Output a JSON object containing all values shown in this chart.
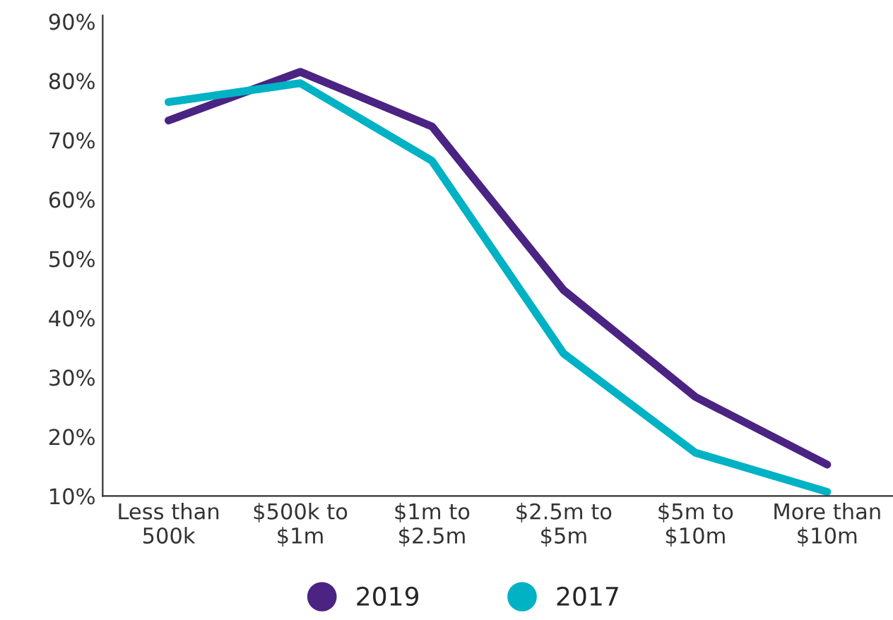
{
  "chart_data": {
    "type": "line",
    "categories": [
      "Less than\n500k",
      "$500k to\n$1m",
      "$1m to\n$2.5m",
      "$2.5m to\n$5m",
      "$5m to\n$10m",
      "More than\n$10m"
    ],
    "series": [
      {
        "name": "2019",
        "color": "#4b2383",
        "values": [
          73.3,
          81.5,
          72.3,
          44.7,
          26.7,
          15.3
        ]
      },
      {
        "name": "2017",
        "color": "#00b2c4",
        "values": [
          76.4,
          79.6,
          66.5,
          34,
          17.3,
          10.7
        ]
      }
    ],
    "ylim": [
      10,
      91
    ],
    "yticks": [
      {
        "value": 10,
        "label": "10%"
      },
      {
        "value": 20,
        "label": "20%"
      },
      {
        "value": 30,
        "label": "30%"
      },
      {
        "value": 40,
        "label": "40%"
      },
      {
        "value": 50,
        "label": "50%"
      },
      {
        "value": 60,
        "label": "60%"
      },
      {
        "value": 70,
        "label": "70%"
      },
      {
        "value": 80,
        "label": "80%"
      },
      {
        "value": 90,
        "label": "90%"
      }
    ],
    "grid": false,
    "legend": "bottom",
    "marker": "none",
    "line_style": "solid"
  }
}
